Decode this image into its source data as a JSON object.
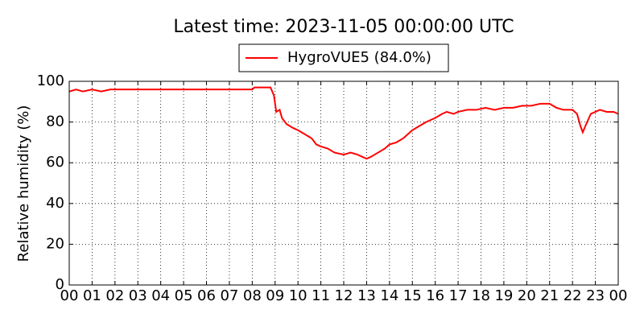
{
  "chart_data": {
    "type": "line",
    "title": "Latest time: 2023-11-05 00:00:00 UTC",
    "y_label": "Relative humidity (%)",
    "grid": true,
    "legend": "upper center",
    "x": [
      0,
      0.3,
      0.6,
      1.0,
      1.4,
      1.8,
      2.5,
      3.5,
      4.5,
      5.5,
      6.5,
      7.5,
      8.0,
      8.1,
      8.8,
      8.95,
      9.05,
      9.2,
      9.3,
      9.5,
      9.8,
      10.0,
      10.3,
      10.6,
      10.8,
      11.0,
      11.3,
      11.6,
      12.0,
      12.3,
      12.6,
      13.0,
      13.2,
      13.5,
      13.8,
      14.0,
      14.3,
      14.6,
      15.0,
      15.3,
      15.6,
      16.0,
      16.3,
      16.5,
      16.8,
      17.0,
      17.4,
      17.8,
      18.2,
      18.6,
      19.0,
      19.4,
      19.8,
      20.2,
      20.6,
      21.0,
      21.3,
      21.6,
      22.0,
      22.2,
      22.35,
      22.45,
      22.6,
      22.8,
      23.0,
      23.2,
      23.5,
      23.8,
      24.0
    ],
    "series": [
      {
        "name": "HygroVUE5 (84.0%)",
        "color": "#ff0000",
        "values": [
          95,
          96,
          95,
          96,
          95,
          96,
          96,
          96,
          96,
          96,
          96,
          96,
          96,
          97,
          97,
          93,
          85,
          86,
          82,
          79,
          77,
          76,
          74,
          72,
          69,
          68,
          67,
          65,
          64,
          65,
          64,
          62,
          63,
          65,
          67,
          69,
          70,
          72,
          76,
          78,
          80,
          82,
          84,
          85,
          84,
          85,
          86,
          86,
          87,
          86,
          87,
          87,
          88,
          88,
          89,
          89,
          87,
          86,
          86,
          84,
          78,
          75,
          79,
          84,
          85,
          86,
          85,
          85,
          84
        ]
      }
    ],
    "xlim": [
      0,
      24
    ],
    "xticks": [
      {
        "value": 0,
        "label": "00"
      },
      {
        "value": 1,
        "label": "01"
      },
      {
        "value": 2,
        "label": "02"
      },
      {
        "value": 3,
        "label": "03"
      },
      {
        "value": 4,
        "label": "04"
      },
      {
        "value": 5,
        "label": "05"
      },
      {
        "value": 6,
        "label": "06"
      },
      {
        "value": 7,
        "label": "07"
      },
      {
        "value": 8,
        "label": "08"
      },
      {
        "value": 9,
        "label": "09"
      },
      {
        "value": 10,
        "label": "10"
      },
      {
        "value": 11,
        "label": "11"
      },
      {
        "value": 12,
        "label": "12"
      },
      {
        "value": 13,
        "label": "13"
      },
      {
        "value": 14,
        "label": "14"
      },
      {
        "value": 15,
        "label": "15"
      },
      {
        "value": 16,
        "label": "16"
      },
      {
        "value": 17,
        "label": "17"
      },
      {
        "value": 18,
        "label": "18"
      },
      {
        "value": 19,
        "label": "19"
      },
      {
        "value": 20,
        "label": "20"
      },
      {
        "value": 21,
        "label": "21"
      },
      {
        "value": 22,
        "label": "22"
      },
      {
        "value": 23,
        "label": "23"
      },
      {
        "value": 24,
        "label": "00"
      }
    ],
    "ylim": [
      0,
      100
    ],
    "yticks": [
      0,
      20,
      40,
      60,
      80,
      100
    ]
  }
}
